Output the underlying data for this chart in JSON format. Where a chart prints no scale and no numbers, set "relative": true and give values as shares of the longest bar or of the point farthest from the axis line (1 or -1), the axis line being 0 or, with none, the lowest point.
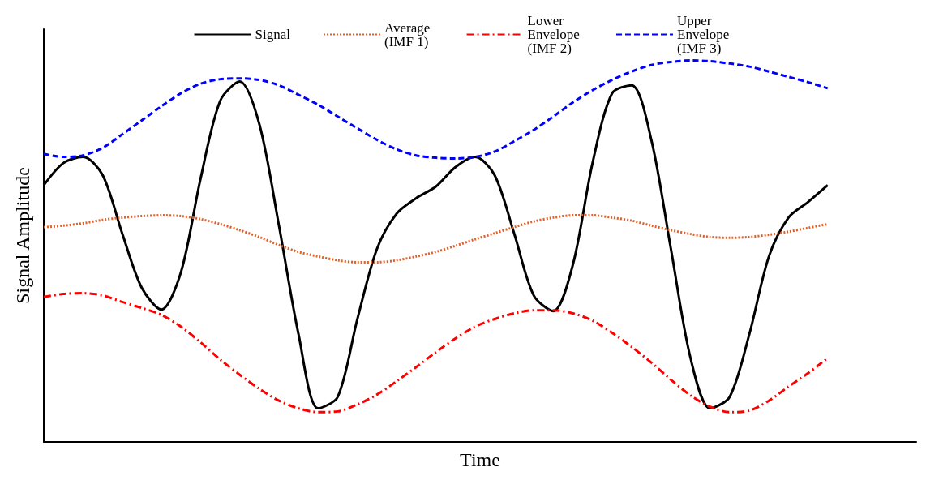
{
  "chart_data": {
    "type": "line",
    "relative": true,
    "xlabel": "Time",
    "ylabel": "Signal Amplitude",
    "legend": "top",
    "grid": false,
    "marker": "none",
    "categories": [
      null,
      null,
      null,
      null,
      null,
      null,
      null,
      null,
      null,
      null,
      null,
      null,
      null,
      null,
      null,
      null,
      null,
      null,
      null,
      null,
      null,
      null,
      null,
      null,
      null,
      null,
      null,
      null,
      null,
      null,
      null,
      null,
      null,
      null,
      null,
      null,
      null,
      null,
      null,
      null,
      null
    ],
    "series": [
      {
        "name": "Signal",
        "color": "#000000",
        "line_style": "solid",
        "values": [
          0.673,
          0.731,
          0.747,
          0.7,
          0.547,
          0.404,
          0.347,
          0.445,
          0.69,
          0.894,
          0.945,
          0.833,
          0.567,
          0.282,
          0.088,
          0.118,
          0.322,
          0.506,
          0.598,
          0.639,
          0.669,
          0.72,
          0.747,
          0.7,
          0.547,
          0.384,
          0.343,
          0.465,
          0.731,
          0.914,
          0.935,
          0.792,
          0.506,
          0.22,
          0.088,
          0.118,
          0.282,
          0.486,
          0.588,
          0.629,
          0.673
        ]
      },
      {
        "name": "Average (IMF 1)",
        "color": "#e0622a",
        "line_style": "dotted",
        "values": [
          0.563,
          0.567,
          0.573,
          0.582,
          0.588,
          0.592,
          0.594,
          0.592,
          0.584,
          0.571,
          0.555,
          0.537,
          0.516,
          0.498,
          0.486,
          0.476,
          0.471,
          0.471,
          0.476,
          0.486,
          0.498,
          0.514,
          0.531,
          0.547,
          0.563,
          0.578,
          0.588,
          0.594,
          0.594,
          0.588,
          0.58,
          0.567,
          0.555,
          0.545,
          0.537,
          0.535,
          0.537,
          0.543,
          0.551,
          0.561,
          0.571
        ]
      },
      {
        "name": "Lower Envelope (IMF 2)",
        "color": "#ff0000",
        "line_style": "dashdot",
        "values": [
          0.38,
          0.388,
          0.39,
          0.384,
          0.367,
          0.351,
          0.333,
          0.302,
          0.261,
          0.216,
          0.176,
          0.139,
          0.108,
          0.088,
          0.078,
          0.08,
          0.098,
          0.124,
          0.159,
          0.196,
          0.235,
          0.271,
          0.302,
          0.322,
          0.337,
          0.345,
          0.345,
          0.337,
          0.318,
          0.286,
          0.249,
          0.208,
          0.163,
          0.122,
          0.092,
          0.078,
          0.082,
          0.108,
          0.145,
          0.18,
          0.22
        ]
      },
      {
        "name": "Upper Envelope (IMF 3)",
        "color": "#0000ff",
        "line_style": "dashed",
        "values": [
          0.755,
          0.747,
          0.751,
          0.771,
          0.806,
          0.843,
          0.88,
          0.914,
          0.939,
          0.951,
          0.953,
          0.949,
          0.935,
          0.91,
          0.884,
          0.853,
          0.822,
          0.792,
          0.767,
          0.751,
          0.745,
          0.743,
          0.747,
          0.761,
          0.788,
          0.818,
          0.853,
          0.89,
          0.922,
          0.949,
          0.971,
          0.988,
          0.996,
          1,
          0.998,
          0.992,
          0.984,
          0.971,
          0.957,
          0.943,
          0.927
        ]
      }
    ]
  }
}
